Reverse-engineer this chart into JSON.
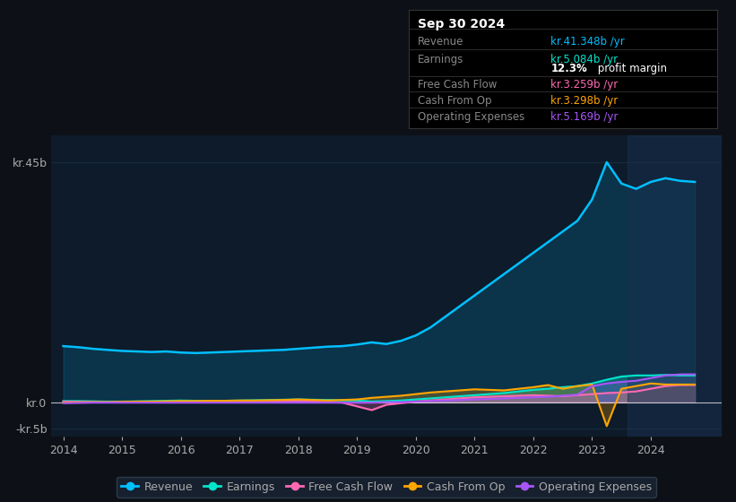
{
  "bg_color": "#0d1117",
  "plot_bg_color": "#0d1b2a",
  "grid_color": "#1e3a4a",
  "text_color": "#aaaaaa",
  "title_color": "#ffffff",
  "years_x": [
    2014,
    2014.25,
    2014.5,
    2014.75,
    2015,
    2015.25,
    2015.5,
    2015.75,
    2016,
    2016.25,
    2016.5,
    2016.75,
    2017,
    2017.25,
    2017.5,
    2017.75,
    2018,
    2018.25,
    2018.5,
    2018.75,
    2019,
    2019.25,
    2019.5,
    2019.75,
    2020,
    2020.25,
    2020.5,
    2020.75,
    2021,
    2021.25,
    2021.5,
    2021.75,
    2022,
    2022.25,
    2022.5,
    2022.75,
    2023,
    2023.25,
    2023.5,
    2023.75,
    2024,
    2024.25,
    2024.5,
    2024.75
  ],
  "revenue": [
    10.5,
    10.3,
    10.0,
    9.8,
    9.6,
    9.5,
    9.4,
    9.5,
    9.3,
    9.2,
    9.3,
    9.4,
    9.5,
    9.6,
    9.7,
    9.8,
    10.0,
    10.2,
    10.4,
    10.5,
    10.8,
    11.2,
    10.9,
    11.5,
    12.5,
    14.0,
    16.0,
    18.0,
    20.0,
    22.0,
    24.0,
    26.0,
    28.0,
    30.0,
    32.0,
    34.0,
    38.0,
    45.0,
    41.0,
    40.0,
    41.3,
    42.0,
    41.5,
    41.3
  ],
  "earnings": [
    0.2,
    0.2,
    0.15,
    0.1,
    0.1,
    0.15,
    0.2,
    0.25,
    0.3,
    0.25,
    0.2,
    0.25,
    0.3,
    0.35,
    0.4,
    0.45,
    0.5,
    0.45,
    0.4,
    0.35,
    0.3,
    0.1,
    0.2,
    0.3,
    0.5,
    0.7,
    0.9,
    1.1,
    1.3,
    1.5,
    1.7,
    2.0,
    2.3,
    2.5,
    2.8,
    3.0,
    3.5,
    4.2,
    4.8,
    5.0,
    5.0,
    5.1,
    5.0,
    5.0
  ],
  "free_cash_flow": [
    0.1,
    0.05,
    0.0,
    -0.05,
    0.0,
    0.05,
    0.1,
    0.05,
    0.0,
    0.05,
    0.1,
    0.1,
    0.15,
    0.1,
    0.1,
    0.15,
    0.2,
    0.1,
    0.0,
    -0.1,
    -0.8,
    -1.5,
    -0.5,
    -0.2,
    0.1,
    0.3,
    0.5,
    0.7,
    0.9,
    1.0,
    1.1,
    1.2,
    1.3,
    1.2,
    1.1,
    1.3,
    1.5,
    1.7,
    1.8,
    2.0,
    2.5,
    3.0,
    3.2,
    3.2
  ],
  "cash_from_op": [
    -0.1,
    -0.05,
    0.0,
    0.0,
    0.05,
    0.1,
    0.1,
    0.15,
    0.2,
    0.2,
    0.25,
    0.25,
    0.3,
    0.3,
    0.35,
    0.4,
    0.5,
    0.4,
    0.3,
    0.4,
    0.5,
    0.8,
    1.0,
    1.2,
    1.5,
    1.8,
    2.0,
    2.2,
    2.4,
    2.3,
    2.2,
    2.5,
    2.8,
    3.2,
    2.5,
    3.0,
    3.3,
    -4.5,
    2.5,
    3.0,
    3.5,
    3.3,
    3.3,
    3.3
  ],
  "op_expenses": [
    -0.2,
    -0.15,
    -0.1,
    -0.1,
    -0.1,
    -0.1,
    -0.1,
    -0.1,
    -0.1,
    -0.1,
    -0.1,
    -0.1,
    -0.1,
    -0.1,
    -0.1,
    -0.1,
    -0.1,
    -0.1,
    -0.1,
    -0.1,
    -0.1,
    -0.1,
    0.0,
    0.0,
    0.1,
    0.2,
    0.3,
    0.4,
    0.5,
    0.6,
    0.7,
    0.8,
    0.9,
    1.0,
    1.2,
    1.4,
    3.0,
    3.5,
    3.8,
    4.0,
    4.5,
    5.0,
    5.2,
    5.2
  ],
  "revenue_color": "#00bfff",
  "earnings_color": "#00e5cc",
  "free_cash_flow_color": "#ff69b4",
  "cash_from_op_color": "#ffa500",
  "op_expenses_color": "#a855f7",
  "info_box": {
    "title": "Sep 30 2024",
    "rows": [
      {
        "label": "Revenue",
        "value": "kr.41.348b /yr",
        "color": "#00bfff"
      },
      {
        "label": "Earnings",
        "value": "kr.5.084b /yr",
        "color": "#00e5cc"
      },
      {
        "label": "",
        "value": "12.3% profit margin",
        "color": "#ffffff"
      },
      {
        "label": "Free Cash Flow",
        "value": "kr.3.259b /yr",
        "color": "#ff69b4"
      },
      {
        "label": "Cash From Op",
        "value": "kr.3.298b /yr",
        "color": "#ffa500"
      },
      {
        "label": "Operating Expenses",
        "value": "kr.5.169b /yr",
        "color": "#a855f7"
      }
    ]
  },
  "ytick_labels": [
    "-kr.5b",
    "kr.0",
    "kr.45b"
  ],
  "ytick_values": [
    -5,
    0,
    45
  ],
  "xticks": [
    2014,
    2015,
    2016,
    2017,
    2018,
    2019,
    2020,
    2021,
    2022,
    2023,
    2024
  ],
  "xlim": [
    2013.8,
    2025.2
  ],
  "ylim": [
    -6.5,
    50
  ],
  "legend_labels": [
    "Revenue",
    "Earnings",
    "Free Cash Flow",
    "Cash From Op",
    "Operating Expenses"
  ],
  "legend_colors": [
    "#00bfff",
    "#00e5cc",
    "#ff69b4",
    "#ffa500",
    "#a855f7"
  ],
  "highlight_start": 2023.6,
  "highlight_color": "#1a3050",
  "highlight_alpha": 0.5
}
